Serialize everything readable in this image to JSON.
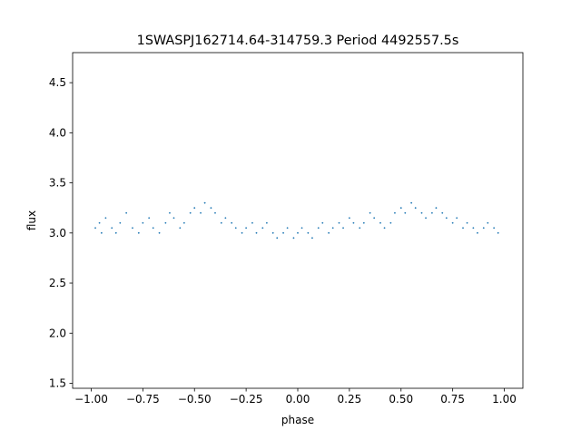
{
  "chart_data": {
    "type": "scatter",
    "title": "1SWASPJ162714.64-314759.3 Period 4492557.5s",
    "xlabel": "phase",
    "ylabel": "flux",
    "xlim": [
      -1.09,
      1.09
    ],
    "ylim": [
      1.45,
      4.8
    ],
    "x_ticks": [
      {
        "value": -1.0,
        "label": "−1.00"
      },
      {
        "value": -0.75,
        "label": "−0.75"
      },
      {
        "value": -0.5,
        "label": "−0.50"
      },
      {
        "value": -0.25,
        "label": "−0.25"
      },
      {
        "value": 0.0,
        "label": "0.00"
      },
      {
        "value": 0.25,
        "label": "0.25"
      },
      {
        "value": 0.5,
        "label": "0.50"
      },
      {
        "value": 0.75,
        "label": "0.75"
      },
      {
        "value": 1.0,
        "label": "1.00"
      }
    ],
    "y_ticks": [
      {
        "value": 1.5,
        "label": "1.5"
      },
      {
        "value": 2.0,
        "label": "2.0"
      },
      {
        "value": 2.5,
        "label": "2.5"
      },
      {
        "value": 3.0,
        "label": "3.0"
      },
      {
        "value": 3.5,
        "label": "3.5"
      },
      {
        "value": 4.0,
        "label": "4.0"
      },
      {
        "value": 4.5,
        "label": "4.5"
      }
    ],
    "grid": false,
    "legend": "none",
    "series": [
      {
        "color": "#1f77b4",
        "marker": "point",
        "x": [
          -0.98,
          -0.96,
          -0.95,
          -0.93,
          -0.9,
          -0.88,
          -0.86,
          -0.83,
          -0.8,
          -0.77,
          -0.75,
          -0.72,
          -0.7,
          -0.67,
          -0.64,
          -0.62,
          -0.6,
          -0.57,
          -0.55,
          -0.52,
          -0.5,
          -0.47,
          -0.45,
          -0.42,
          -0.4,
          -0.37,
          -0.35,
          -0.32,
          -0.3,
          -0.27,
          -0.25,
          -0.22,
          -0.2,
          -0.17,
          -0.15,
          -0.12,
          -0.1,
          -0.07,
          -0.05,
          -0.02,
          0.0,
          0.02,
          0.05,
          0.07,
          0.1,
          0.12,
          0.15,
          0.17,
          0.2,
          0.22,
          0.25,
          0.27,
          0.3,
          0.32,
          0.35,
          0.37,
          0.4,
          0.42,
          0.45,
          0.47,
          0.5,
          0.52,
          0.55,
          0.57,
          0.6,
          0.62,
          0.65,
          0.67,
          0.7,
          0.72,
          0.75,
          0.77,
          0.8,
          0.82,
          0.85,
          0.87,
          0.9,
          0.92,
          0.95,
          0.97
        ],
        "y": [
          3.05,
          3.1,
          3.0,
          3.15,
          3.05,
          3.0,
          3.1,
          3.2,
          3.05,
          3.0,
          3.1,
          3.15,
          3.05,
          3.0,
          3.1,
          3.2,
          3.15,
          3.05,
          3.1,
          3.2,
          3.25,
          3.2,
          3.3,
          3.25,
          3.2,
          3.1,
          3.15,
          3.1,
          3.05,
          3.0,
          3.05,
          3.1,
          3.0,
          3.05,
          3.1,
          3.0,
          2.95,
          3.0,
          3.05,
          2.95,
          3.0,
          3.05,
          3.0,
          2.95,
          3.05,
          3.1,
          3.0,
          3.05,
          3.1,
          3.05,
          3.15,
          3.1,
          3.05,
          3.1,
          3.2,
          3.15,
          3.1,
          3.05,
          3.1,
          3.2,
          3.25,
          3.2,
          3.3,
          3.25,
          3.2,
          3.15,
          3.2,
          3.25,
          3.2,
          3.15,
          3.1,
          3.15,
          3.05,
          3.1,
          3.05,
          3.0,
          3.05,
          3.1,
          3.05,
          3.0
        ]
      }
    ]
  }
}
